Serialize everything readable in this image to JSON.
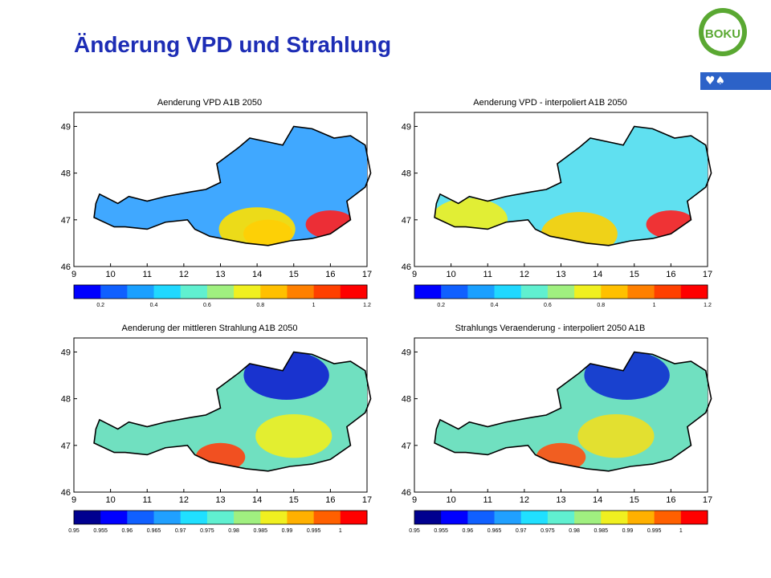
{
  "slide": {
    "title": "Änderung VPD und Strahlung",
    "logo_text": "BOKU",
    "logo_bar_text": "♥♠"
  },
  "chart_data": [
    {
      "type": "heatmap",
      "title": "Aenderung VPD  A1B  2050",
      "x_ticks": [
        "9",
        "10",
        "11",
        "12",
        "13",
        "14",
        "15",
        "16",
        "17"
      ],
      "y_ticks": [
        "46",
        "47",
        "48",
        "49"
      ],
      "xlim": [
        9,
        17
      ],
      "ylim": [
        46,
        49.3
      ],
      "colorbar_labels": [
        "0.2",
        "0.4",
        "0.6",
        "0.8",
        "1",
        "1.2"
      ],
      "colorbar_colors": [
        "#0000ff",
        "#1060ff",
        "#1aa0ff",
        "#20d8ff",
        "#60f0d0",
        "#a0f080",
        "#f0f020",
        "#ffc000",
        "#ff8000",
        "#ff4000",
        "#ff0000"
      ],
      "hotspots": [
        {
          "lon": 16.0,
          "lat": 46.9,
          "level": "high",
          "color": "#ff2020"
        },
        {
          "lon": 14.3,
          "lat": 46.7,
          "level": "high",
          "color": "#ff3030"
        },
        {
          "lon": 14.0,
          "lat": 46.8,
          "level": "medium",
          "color": "#ffe000"
        }
      ],
      "base_color": "#40a8ff"
    },
    {
      "type": "heatmap",
      "title": "Aenderung  VPD  - interpoliert  A1B 2050",
      "x_ticks": [
        "9",
        "10",
        "11",
        "12",
        "13",
        "14",
        "15",
        "16",
        "17"
      ],
      "y_ticks": [
        "46",
        "47",
        "48",
        "49"
      ],
      "xlim": [
        9,
        17
      ],
      "ylim": [
        46,
        49.3
      ],
      "colorbar_labels": [
        "0.2",
        "0.4",
        "0.6",
        "0.8",
        "1",
        "1.2"
      ],
      "colorbar_colors": [
        "#0000ff",
        "#1060ff",
        "#1aa0ff",
        "#20d8ff",
        "#60f0d0",
        "#a0f080",
        "#f0f020",
        "#ffc000",
        "#ff8000",
        "#ff4000",
        "#ff0000"
      ],
      "hotspots": [
        {
          "lon": 16.0,
          "lat": 46.9,
          "level": "high",
          "color": "#ff2020"
        },
        {
          "lon": 13.5,
          "lat": 46.7,
          "level": "medium",
          "color": "#ffd000"
        },
        {
          "lon": 10.5,
          "lat": 47.0,
          "level": "medium",
          "color": "#f0f020"
        }
      ],
      "base_color": "#60e0f0"
    },
    {
      "type": "heatmap",
      "title": "Aenderung der mittleren Strahlung  A1B  2050",
      "x_ticks": [
        "9",
        "10",
        "11",
        "12",
        "13",
        "14",
        "15",
        "16",
        "17"
      ],
      "y_ticks": [
        "46",
        "47",
        "48",
        "49"
      ],
      "xlim": [
        9,
        17
      ],
      "ylim": [
        46,
        49.3
      ],
      "colorbar_labels": [
        "0.95",
        "0.955",
        "0.96",
        "0.965",
        "0.97",
        "0.975",
        "0.98",
        "0.985",
        "0.99",
        "0.995",
        "1"
      ],
      "colorbar_colors": [
        "#00008f",
        "#0000ff",
        "#1060ff",
        "#20a0ff",
        "#20e0ff",
        "#60f0d0",
        "#a0f080",
        "#f0f020",
        "#ffb000",
        "#ff6000",
        "#ff0000"
      ],
      "hotspots": [
        {
          "lon": 14.8,
          "lat": 48.5,
          "level": "low",
          "color": "#1020d0"
        },
        {
          "lon": 13.0,
          "lat": 46.75,
          "level": "high",
          "color": "#ff4010"
        },
        {
          "lon": 15.0,
          "lat": 47.2,
          "level": "medium",
          "color": "#f0f020"
        }
      ],
      "base_color": "#70e0c0"
    },
    {
      "type": "heatmap",
      "title": "Strahlungs Veraenderung - interpoliert 2050  A1B",
      "x_ticks": [
        "9",
        "10",
        "11",
        "12",
        "13",
        "14",
        "15",
        "16",
        "17"
      ],
      "y_ticks": [
        "46",
        "47",
        "48",
        "49"
      ],
      "xlim": [
        9,
        17
      ],
      "ylim": [
        46,
        49.3
      ],
      "colorbar_labels": [
        "0.95",
        "0.955",
        "0.96",
        "0.965",
        "0.97",
        "0.975",
        "0.98",
        "0.985",
        "0.99",
        "0.995",
        "1"
      ],
      "colorbar_colors": [
        "#00008f",
        "#0000ff",
        "#1060ff",
        "#20a0ff",
        "#20e0ff",
        "#60f0d0",
        "#a0f080",
        "#f0f020",
        "#ffb000",
        "#ff6000",
        "#ff0000"
      ],
      "hotspots": [
        {
          "lon": 14.8,
          "lat": 48.5,
          "level": "low",
          "color": "#1030d0"
        },
        {
          "lon": 13.0,
          "lat": 46.75,
          "level": "high",
          "color": "#ff5010"
        },
        {
          "lon": 14.5,
          "lat": 47.2,
          "level": "medium",
          "color": "#f0e020"
        }
      ],
      "base_color": "#70e0c0"
    }
  ]
}
